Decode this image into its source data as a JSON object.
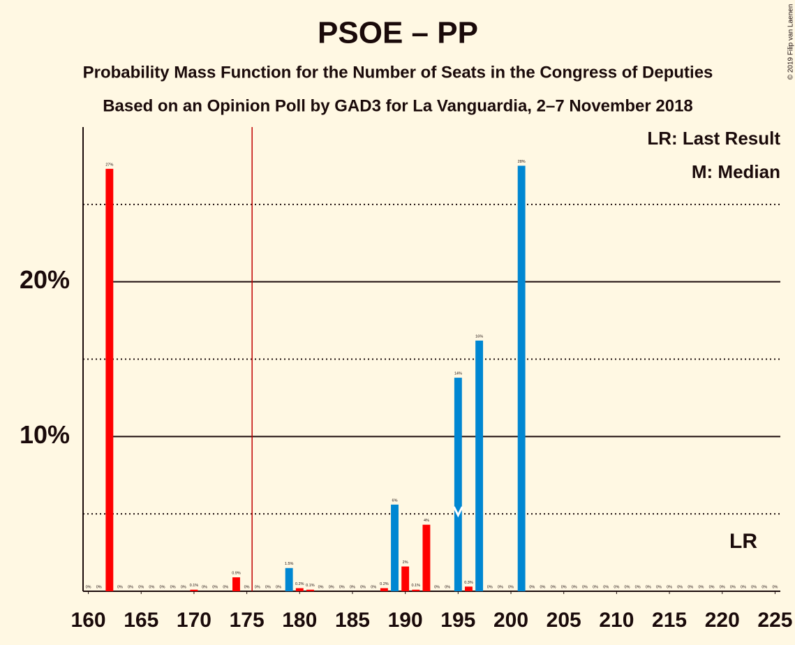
{
  "chart_data": {
    "type": "bar",
    "title": "PSOE – PP",
    "subtitle": "Probability Mass Function for the Number of Seats in the Congress of Deputies",
    "subtitle2": "Based on an Opinion Poll by GAD3 for La Vanguardia, 2–7 November 2018",
    "copyright": "© 2019 Filip van Laenen",
    "legend": [
      "LR: Last Result",
      "M: Median"
    ],
    "legend_position": "upper right",
    "x": [
      160,
      161,
      162,
      163,
      164,
      165,
      166,
      167,
      168,
      169,
      170,
      171,
      172,
      173,
      174,
      175,
      176,
      177,
      178,
      179,
      180,
      181,
      182,
      183,
      184,
      185,
      186,
      187,
      188,
      189,
      190,
      191,
      192,
      193,
      194,
      195,
      196,
      197,
      198,
      199,
      200,
      201,
      202,
      203,
      204,
      205,
      206,
      207,
      208,
      209,
      210,
      211,
      212,
      213,
      214,
      215,
      216,
      217,
      218,
      219,
      220,
      221,
      222,
      223,
      224,
      225
    ],
    "values": [
      0,
      0,
      27.3,
      0,
      0,
      0,
      0,
      0,
      0,
      0,
      0.1,
      0,
      0,
      0,
      0.9,
      0,
      0,
      0,
      0,
      1.5,
      0.2,
      0.1,
      0,
      0,
      0,
      0,
      0,
      0,
      0.2,
      5.6,
      1.6,
      0.1,
      4.3,
      0,
      0,
      13.8,
      0.3,
      16.2,
      0,
      0,
      0,
      27.5,
      0,
      0,
      0,
      0,
      0,
      0,
      0,
      0,
      0,
      0,
      0,
      0,
      0,
      0,
      0,
      0,
      0,
      0,
      0,
      0,
      0,
      0,
      0,
      0
    ],
    "value_labels": [
      "0%",
      "0%",
      "27%",
      "0%",
      "0%",
      "0%",
      "0%",
      "0%",
      "0%",
      "0%",
      "0.1%",
      "0%",
      "0%",
      "0%",
      "0.9%",
      "0%",
      "0%",
      "0%",
      "0%",
      "1.5%",
      "0.2%",
      "0.1%",
      "0%",
      "0%",
      "0%",
      "0%",
      "0%",
      "0%",
      "0.2%",
      "6%",
      "2%",
      "0.1%",
      "4%",
      "0%",
      "0%",
      "14%",
      "0.3%",
      "16%",
      "0%",
      "0%",
      "0%",
      "28%",
      "0%",
      "0%",
      "0%",
      "0%",
      "0%",
      "0%",
      "0%",
      "0%",
      "0%",
      "0%",
      "0%",
      "0%",
      "0%",
      "0%",
      "0%",
      "0%",
      "0%",
      "0%",
      "0%",
      "0%",
      "0%",
      "0%",
      "0%",
      "0%"
    ],
    "colors": [
      "#ff0000",
      "#ff0000",
      "#ff0000",
      "#ff0000",
      "#ff0000",
      "#ff0000",
      "#ff0000",
      "#ff0000",
      "#ff0000",
      "#ff0000",
      "#ff0000",
      "#ff0000",
      "#ff0000",
      "#ff0000",
      "#ff0000",
      "#ff0000",
      "#ff0000",
      "#ff0000",
      "#ff0000",
      "#0087d2",
      "#ff0000",
      "#ff0000",
      "#ff0000",
      "#ff0000",
      "#ff0000",
      "#ff0000",
      "#ff0000",
      "#ff0000",
      "#ff0000",
      "#0087d2",
      "#ff0000",
      "#ff0000",
      "#ff0000",
      "#ff0000",
      "#ff0000",
      "#0087d2",
      "#ff0000",
      "#0087d2",
      "#ff0000",
      "#ff0000",
      "#ff0000",
      "#0087d2",
      "#ff0000",
      "#ff0000",
      "#ff0000",
      "#ff0000",
      "#ff0000",
      "#ff0000",
      "#ff0000",
      "#ff0000",
      "#ff0000",
      "#ff0000",
      "#ff0000",
      "#ff0000",
      "#ff0000",
      "#ff0000",
      "#ff0000",
      "#ff0000",
      "#ff0000",
      "#ff0000",
      "#ff0000",
      "#ff0000",
      "#ff0000",
      "#ff0000",
      "#ff0000",
      "#ff0000"
    ],
    "xlim": [
      159.5,
      225.5
    ],
    "xticks": [
      160,
      165,
      170,
      175,
      180,
      185,
      190,
      195,
      200,
      205,
      210,
      215,
      220,
      225
    ],
    "ylim": [
      0,
      30
    ],
    "yticks": [
      {
        "value": 10,
        "label": "10%"
      },
      {
        "value": 20,
        "label": "20%"
      }
    ],
    "minor_yticks": [
      5,
      15,
      25
    ],
    "grid": true,
    "majority_line": 175.5,
    "majority_color": "#c00000",
    "median": 195,
    "last_result": {
      "x": 222,
      "label": "LR"
    }
  }
}
